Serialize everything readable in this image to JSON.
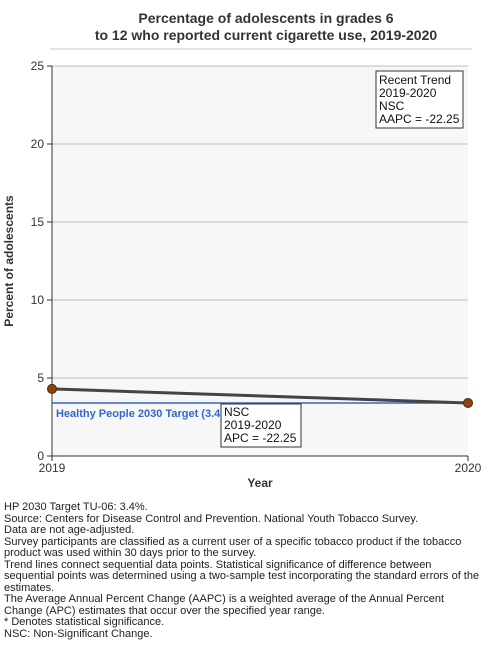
{
  "chart_data": {
    "type": "line",
    "title_lines": [
      "Percentage of adolescents in grades 6",
      "to 12 who reported current cigarette use, 2019-2020"
    ],
    "xlabel": "Year",
    "ylabel": "Percent of adolescents",
    "x": [
      "2019",
      "2020"
    ],
    "x_tick_labels": [
      "2019",
      "2020"
    ],
    "ylim": [
      0,
      25
    ],
    "y_ticks": [
      0,
      5,
      10,
      15,
      20,
      25
    ],
    "grid": true,
    "series": [
      {
        "values": [
          4.3,
          3.4
        ],
        "line_color": "#444444",
        "marker_color": "#8b4513"
      }
    ],
    "target": {
      "value": 3.4,
      "label": "Healthy People 2030 Target (3.4",
      "color": "#3366cc"
    },
    "trend_box": {
      "lines": [
        "Recent Trend",
        "2019-2020",
        "NSC",
        "AAPC = -22.25"
      ],
      "placement": "top-right"
    },
    "segment_box": {
      "lines": [
        "NSC",
        "2019-2020",
        "APC = -22.25"
      ]
    }
  },
  "footnotes": [
    "HP 2030 Target TU-06: 3.4%.",
    "Source: Centers for Disease Control and Prevention. National Youth Tobacco Survey.",
    "Data are not age-adjusted.",
    "Survey participants are classified as a current user of a specific tobacco product if the tobacco",
    "product was used within 30 days prior to the survey.",
    "Trend lines connect sequential data points. Statistical significance of difference between",
    "sequential points was determined using a two-sample test incorporating the standard errors of the",
    "estimates.",
    "The Average Annual Percent Change (AAPC) is a weighted average of the Annual Percent",
    "Change (APC) estimates that occur over the specified year range.",
    "* Denotes statistical significance.",
    "NSC: Non-Significant Change."
  ]
}
